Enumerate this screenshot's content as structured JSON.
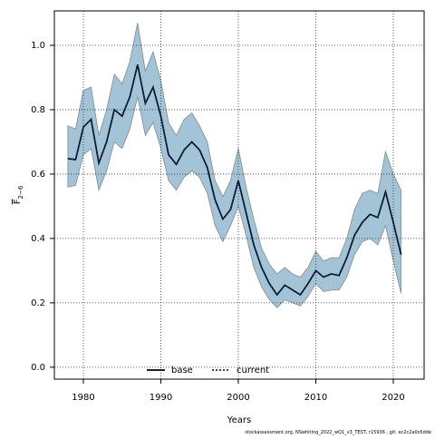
{
  "chart_data": {
    "type": "line",
    "xlabel": "Years",
    "ylabel": {
      "main": "F",
      "sub": "2−6"
    },
    "footnote": "stockassessment.org, NSwhiting_2022_wQ1_v3_TEST, r15936 , git: ec2c2a0c6dde",
    "x": [
      1978,
      1979,
      1980,
      1981,
      1982,
      1983,
      1984,
      1985,
      1986,
      1987,
      1988,
      1989,
      1990,
      1991,
      1992,
      1993,
      1994,
      1995,
      1996,
      1997,
      1998,
      1999,
      2000,
      2001,
      2002,
      2003,
      2004,
      2005,
      2006,
      2007,
      2008,
      2009,
      2010,
      2011,
      2012,
      2013,
      2014,
      2015,
      2016,
      2017,
      2018,
      2019,
      2020,
      2021
    ],
    "series": [
      {
        "name": "base",
        "color": "#000000",
        "dash": "solid",
        "values": [
          0.648,
          0.645,
          0.746,
          0.77,
          0.634,
          0.7,
          0.8,
          0.78,
          0.84,
          0.94,
          0.82,
          0.87,
          0.78,
          0.66,
          0.63,
          0.675,
          0.7,
          0.675,
          0.62,
          0.52,
          0.46,
          0.49,
          0.58,
          0.48,
          0.38,
          0.31,
          0.26,
          0.225,
          0.255,
          0.24,
          0.225,
          0.26,
          0.3,
          0.28,
          0.29,
          0.285,
          0.34,
          0.41,
          0.45,
          0.475,
          0.465,
          0.545,
          0.45,
          0.35
        ]
      },
      {
        "name": "current",
        "color": "#0b2f5c",
        "dash": "dotted",
        "values": [
          0.648,
          0.645,
          0.746,
          0.77,
          0.634,
          0.7,
          0.8,
          0.78,
          0.84,
          0.94,
          0.82,
          0.87,
          0.78,
          0.66,
          0.63,
          0.675,
          0.7,
          0.675,
          0.62,
          0.52,
          0.46,
          0.49,
          0.58,
          0.48,
          0.38,
          0.31,
          0.26,
          0.225,
          0.255,
          0.24,
          0.225,
          0.26,
          0.3,
          0.28,
          0.29,
          0.285,
          0.34,
          0.41,
          0.45,
          0.475,
          0.465,
          0.545,
          0.45,
          0.35
        ]
      }
    ],
    "band": {
      "color": "#a3c3d6",
      "edge": "#7f8c94",
      "upper": [
        0.75,
        0.74,
        0.86,
        0.87,
        0.72,
        0.8,
        0.91,
        0.88,
        0.95,
        1.07,
        0.92,
        0.98,
        0.89,
        0.76,
        0.72,
        0.77,
        0.79,
        0.75,
        0.7,
        0.58,
        0.53,
        0.58,
        0.68,
        0.56,
        0.46,
        0.37,
        0.32,
        0.29,
        0.31,
        0.29,
        0.28,
        0.31,
        0.36,
        0.33,
        0.34,
        0.34,
        0.4,
        0.49,
        0.54,
        0.55,
        0.54,
        0.67,
        0.6,
        0.55
      ],
      "lower": [
        0.56,
        0.565,
        0.66,
        0.68,
        0.55,
        0.61,
        0.7,
        0.68,
        0.74,
        0.84,
        0.72,
        0.76,
        0.68,
        0.58,
        0.55,
        0.59,
        0.61,
        0.59,
        0.54,
        0.44,
        0.39,
        0.44,
        0.5,
        0.41,
        0.31,
        0.25,
        0.21,
        0.185,
        0.21,
        0.2,
        0.19,
        0.22,
        0.26,
        0.235,
        0.24,
        0.24,
        0.28,
        0.35,
        0.39,
        0.4,
        0.38,
        0.44,
        0.33,
        0.23
      ]
    },
    "xlim": [
      1976.26,
      2023.98
    ],
    "ylim": [
      -0.037,
      1.107
    ],
    "xticks": [
      1980,
      1990,
      2000,
      2010,
      2020
    ],
    "yticks": [
      {
        "value": 0,
        "label": "0.0"
      },
      0.2,
      0.4,
      0.6,
      0.8,
      {
        "value": 1,
        "label": "1.0"
      }
    ],
    "grid": true,
    "legend": "bottom"
  }
}
